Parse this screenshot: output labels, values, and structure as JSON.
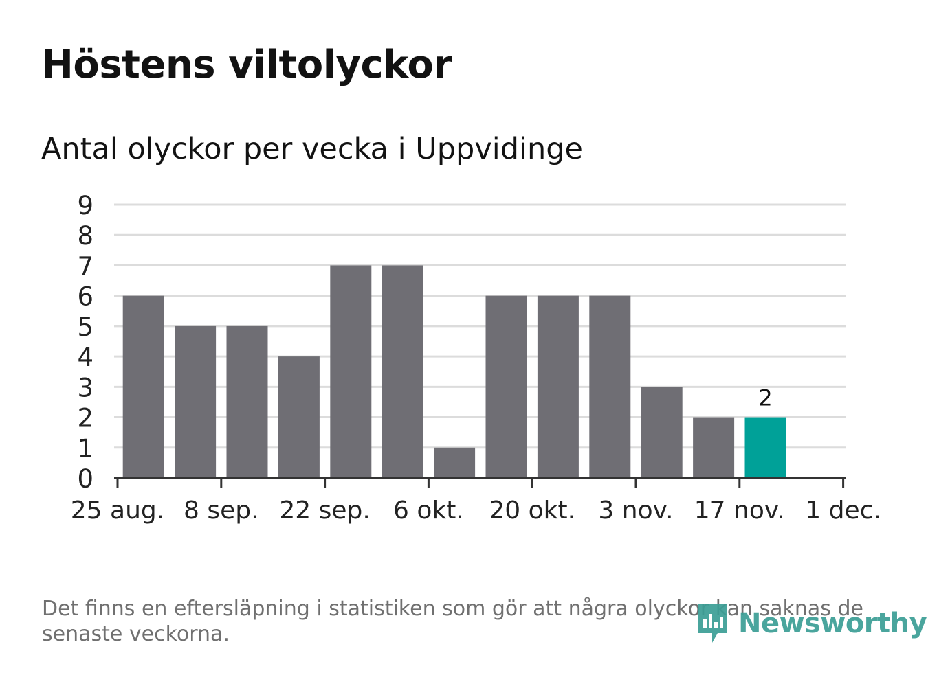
{
  "header": {
    "title": "Höstens viltolyckor",
    "subtitle": "Antal olyckor per vecka i Uppvidinge"
  },
  "footer": {
    "note": "Det finns en eftersläpning i statistiken som gör att några olyckor kan saknas de senaste veckorna.",
    "logo_text": "Newsworthy"
  },
  "colors": {
    "bar": "#6f6e74",
    "highlight": "#00a198",
    "grid": "#dcdcdc",
    "axis": "#333333",
    "tick_label": "#222222",
    "logo": "#3b9e95"
  },
  "chart_data": {
    "type": "bar",
    "title": "Höstens viltolyckor",
    "subtitle": "Antal olyckor per vecka i Uppvidinge",
    "xlabel": "",
    "ylabel": "",
    "ylim": [
      0,
      9
    ],
    "yticks": [
      0,
      1,
      2,
      3,
      4,
      5,
      6,
      7,
      8,
      9
    ],
    "grid": true,
    "x_tick_labels": [
      "25 aug.",
      "8 sep.",
      "22 sep.",
      "6 okt.",
      "20 okt.",
      "3 nov.",
      "17 nov.",
      "1 dec."
    ],
    "values": [
      6,
      5,
      5,
      4,
      7,
      7,
      1,
      6,
      6,
      6,
      3,
      2,
      2
    ],
    "highlight_index": 12,
    "data_labels": [
      {
        "index": 12,
        "text": "2"
      }
    ]
  }
}
